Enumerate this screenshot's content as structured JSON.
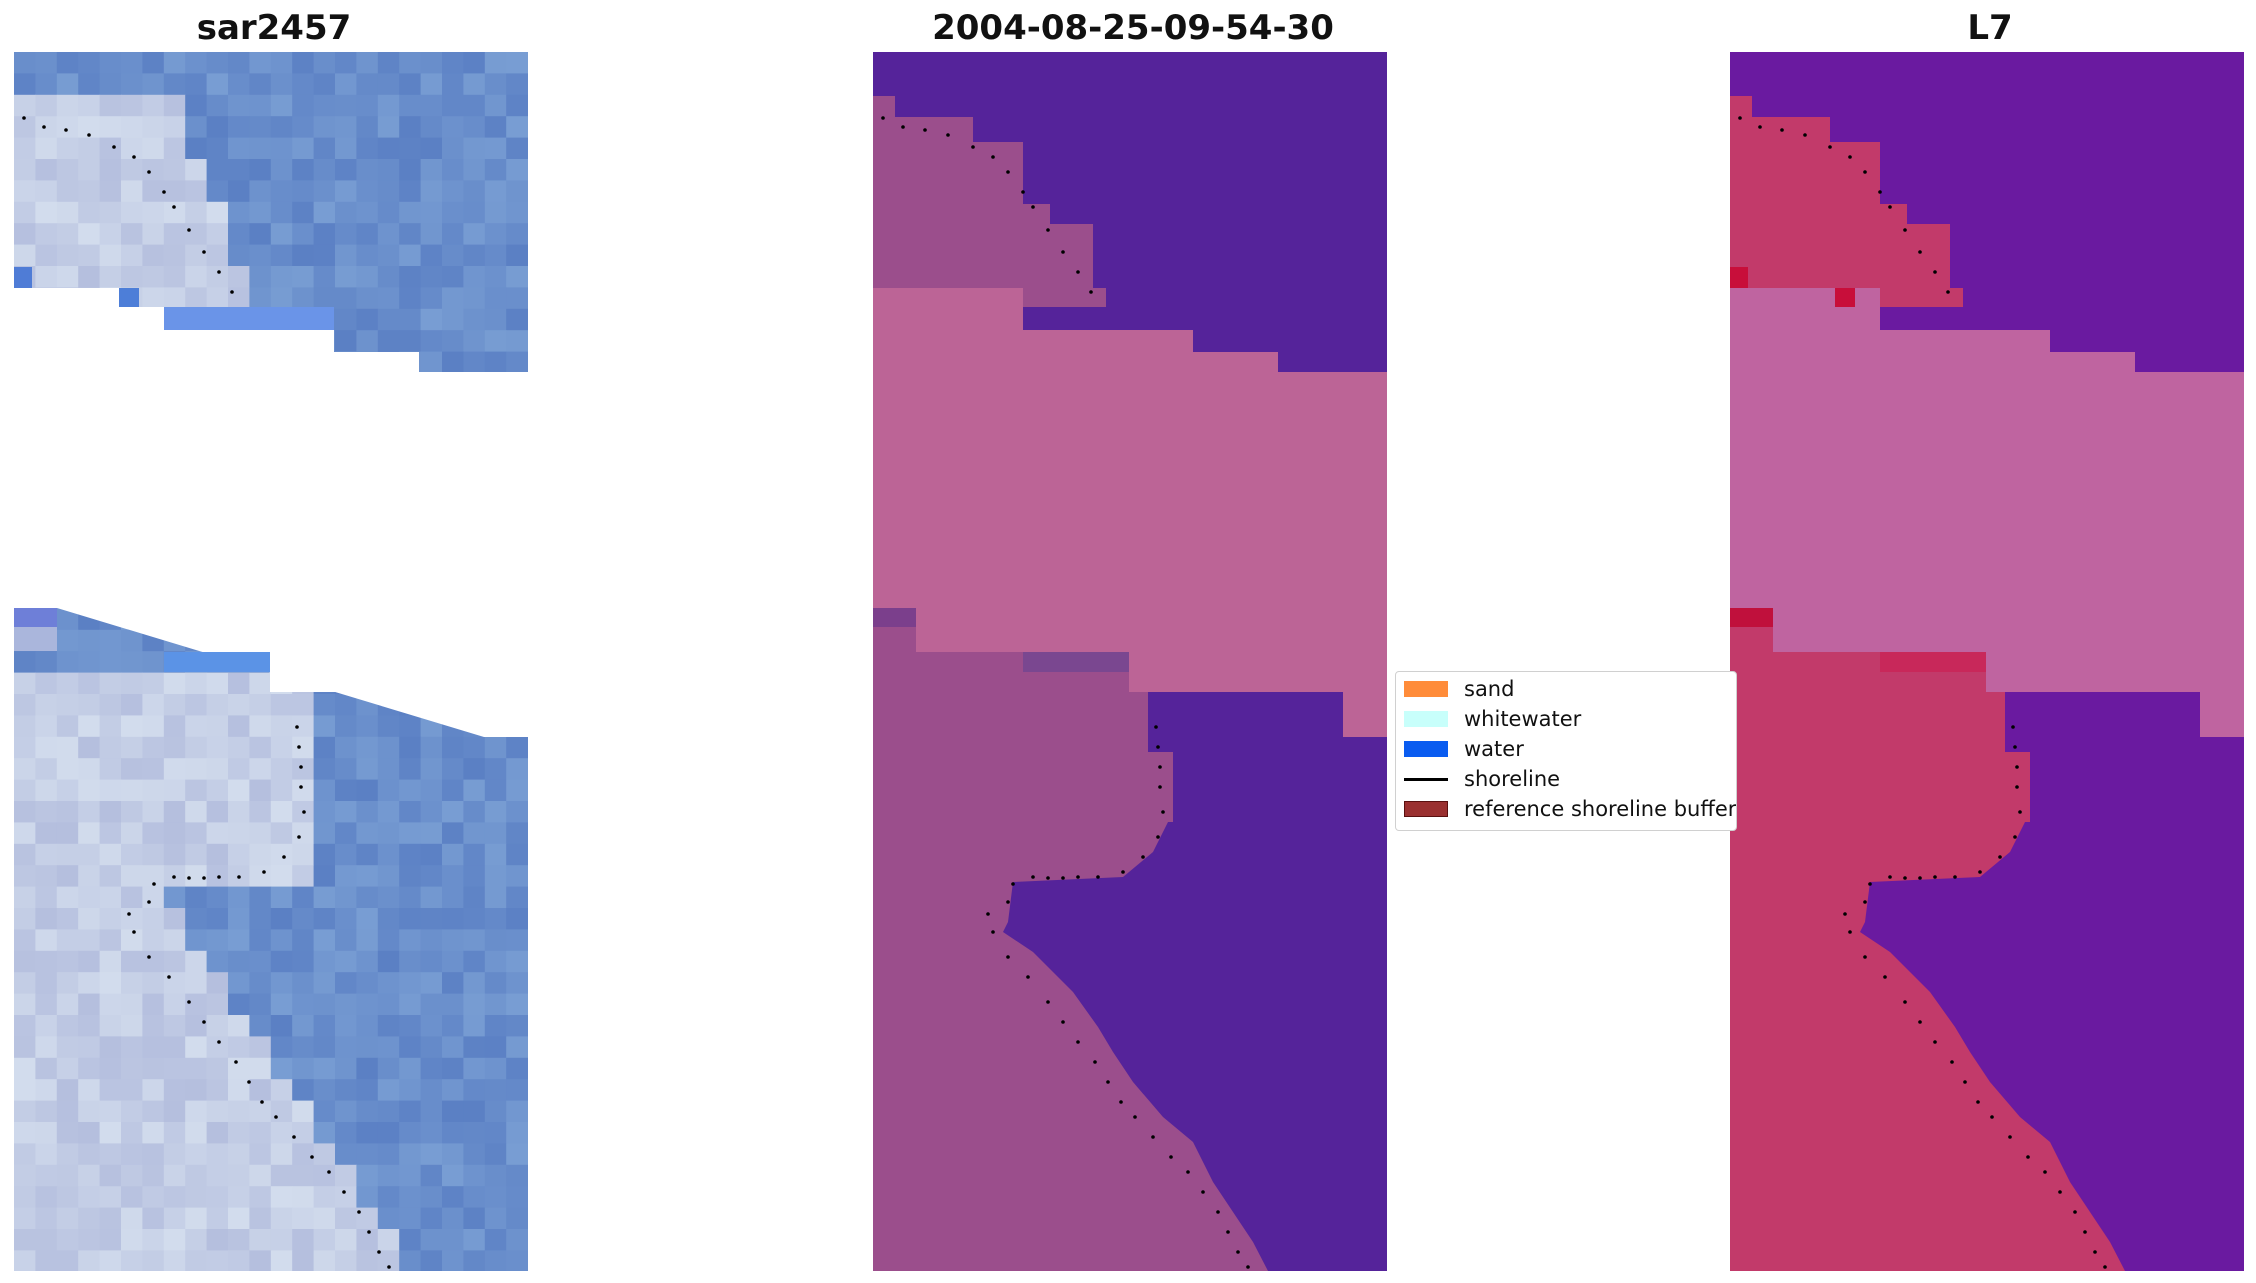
{
  "panels": [
    {
      "title": "sar2457"
    },
    {
      "title": "2004-08-25-09-54-30"
    },
    {
      "title": "L7"
    }
  ],
  "legend": {
    "items": [
      {
        "label": "sand",
        "color": "#ff8c3a",
        "kind": "patch"
      },
      {
        "label": "whitewater",
        "color": "#c8fffb",
        "kind": "patch"
      },
      {
        "label": "water",
        "color": "#0a5cf0",
        "kind": "patch"
      },
      {
        "label": "shoreline",
        "color": "#000000",
        "kind": "line"
      },
      {
        "label": "reference shoreline buffer",
        "color": "#9a3030",
        "kind": "patch"
      }
    ]
  },
  "colors": {
    "panel1_water": "#6a8fcc",
    "panel1_land": "#c4d0e4",
    "panel2_water": "#55239a",
    "panel2_land": "#9b4e8c",
    "panel2_buffer": "#bc6496",
    "panel3_water": "#6a1aa0",
    "panel3_land": "#c23a6a",
    "panel3_buffer": "#bf64a0",
    "shoreline_dots": "#000000"
  }
}
